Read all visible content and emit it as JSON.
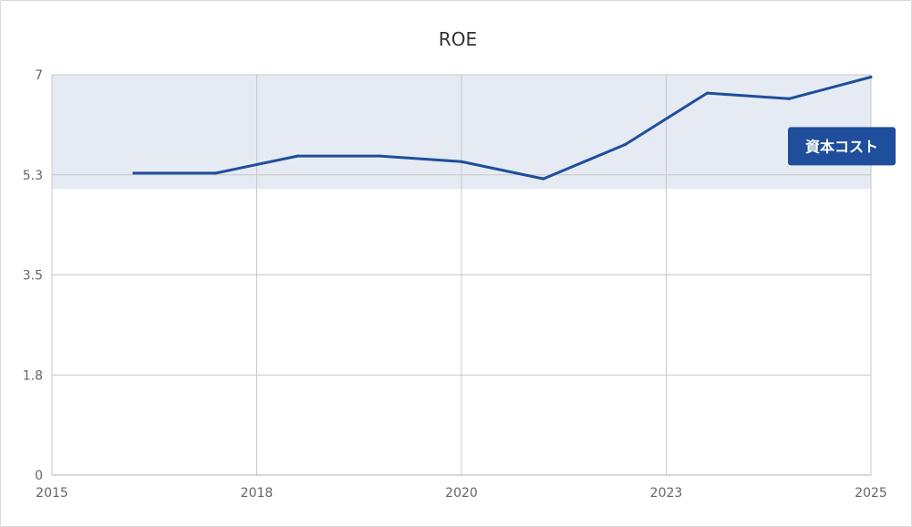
{
  "chart_data": {
    "type": "line",
    "title": "ROE",
    "xlabel": "",
    "ylabel": "",
    "xlim": [
      2015,
      2025
    ],
    "ylim": [
      0,
      7
    ],
    "x_ticks": [
      {
        "value": 2015,
        "label": "2015"
      },
      {
        "value": 2017.5,
        "label": "2018"
      },
      {
        "value": 2020,
        "label": "2020"
      },
      {
        "value": 2022.5,
        "label": "2023"
      },
      {
        "value": 2025,
        "label": "2025"
      }
    ],
    "y_ticks": [
      {
        "value": 0,
        "label": "0"
      },
      {
        "value": 1.75,
        "label": "1.8"
      },
      {
        "value": 3.5,
        "label": "3.5"
      },
      {
        "value": 5.25,
        "label": "5.3"
      },
      {
        "value": 7,
        "label": "7"
      }
    ],
    "grid": true,
    "series": [
      {
        "color": "#1f4e9c",
        "points": [
          {
            "x": 2016,
            "y": 5.28
          },
          {
            "x": 2017,
            "y": 5.28
          },
          {
            "x": 2018,
            "y": 5.58
          },
          {
            "x": 2019,
            "y": 5.58
          },
          {
            "x": 2020,
            "y": 5.48
          },
          {
            "x": 2021,
            "y": 5.18
          },
          {
            "x": 2022,
            "y": 5.78
          },
          {
            "x": 2023,
            "y": 6.68
          },
          {
            "x": 2024,
            "y": 6.58
          },
          {
            "x": 2025,
            "y": 6.96
          }
        ]
      }
    ],
    "bands": [
      {
        "label": "資本コスト",
        "from": 5.0,
        "to": 7,
        "color": "#e6ebf3",
        "label_color": "#1f4e9c",
        "label_y": 5.75
      }
    ]
  }
}
